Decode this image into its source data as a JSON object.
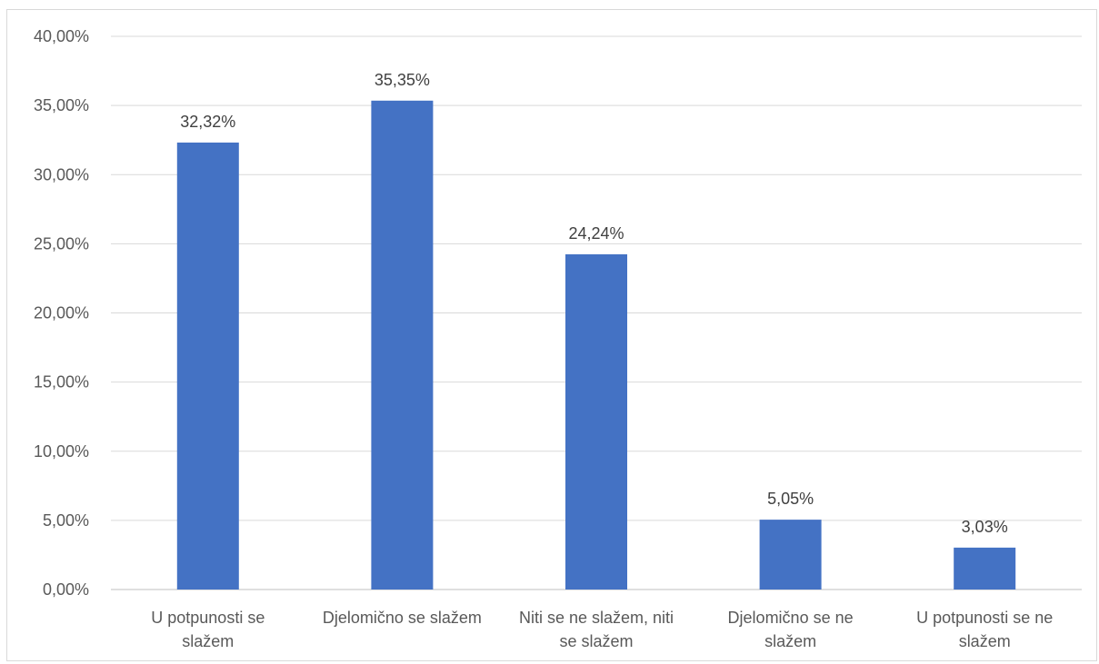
{
  "chart_data": {
    "type": "bar",
    "title": "",
    "xlabel": "",
    "ylabel": "",
    "ylim": [
      0,
      40
    ],
    "y_ticks": [
      "0,00%",
      "5,00%",
      "10,00%",
      "15,00%",
      "20,00%",
      "25,00%",
      "30,00%",
      "35,00%",
      "40,00%"
    ],
    "grid": true,
    "legend": "none",
    "bar_color": "#4472C4",
    "categories": [
      [
        "U potpunosti se",
        "slažem"
      ],
      [
        "Djelomično se slažem"
      ],
      [
        "Niti se ne slažem, niti",
        "se slažem"
      ],
      [
        "Djelomično se ne",
        "slažem"
      ],
      [
        "U potpunosti se ne",
        "slažem"
      ]
    ],
    "values": [
      32.32,
      35.35,
      24.24,
      5.05,
      3.03
    ],
    "data_labels": [
      "32,32%",
      "35,35%",
      "24,24%",
      "5,05%",
      "3,03%"
    ]
  }
}
